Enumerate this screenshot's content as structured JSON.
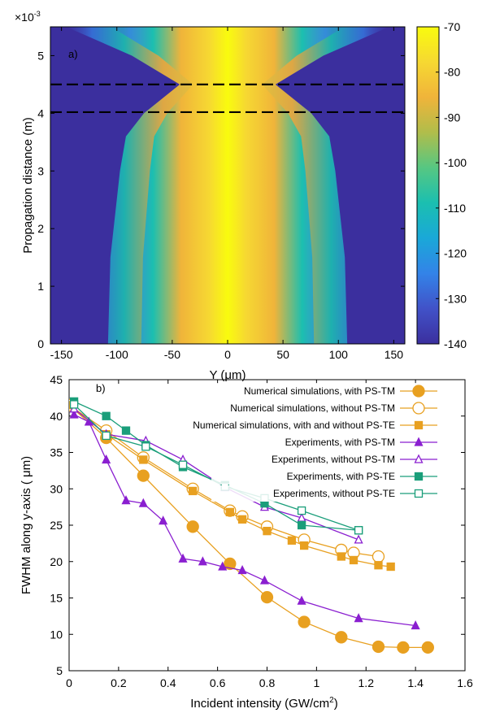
{
  "chart_data": [
    {
      "type": "heatmap",
      "panel_label": "a)",
      "xlabel": "Y (μm)",
      "ylabel": "Propagation distance (m)",
      "y_multiplier": "×10",
      "y_exponent": "-3",
      "xlim": [
        -160,
        160
      ],
      "ylim": [
        0,
        5.5
      ],
      "x_ticks": [
        "-150",
        "-100",
        "-50",
        "0",
        "50",
        "100",
        "150"
      ],
      "y_ticks": [
        "0",
        "1",
        "2",
        "3",
        "4",
        "5"
      ],
      "colorbar": {
        "range": [
          -140,
          -70
        ],
        "ticks": [
          "-70",
          "-80",
          "-90",
          "-100",
          "-110",
          "-120",
          "-130",
          "-140"
        ],
        "colors": [
          "#3b2f9e",
          "#4152c8",
          "#3383e8",
          "#1aa8d8",
          "#1bbfb0",
          "#56c782",
          "#b0bd4b",
          "#f0b43a",
          "#f6d832",
          "#f9fb0e"
        ]
      },
      "dashed_lines_y": [
        4.5,
        4.02
      ],
      "beam_profile": [
        [
          0,
          100
        ],
        [
          1.5,
          98
        ],
        [
          3.0,
          90
        ],
        [
          3.6,
          85
        ],
        [
          4.0,
          70
        ],
        [
          4.5,
          40
        ],
        [
          5.0,
          80
        ],
        [
          5.5,
          135
        ]
      ]
    },
    {
      "type": "line",
      "panel_label": "b)",
      "xlabel": "Incident intensity (GW/cm",
      "xlabel_sup": "2",
      "xlabel_end": ")",
      "ylabel": "FWHM along y-axis ( μm)",
      "xlim": [
        0,
        1.6
      ],
      "ylim": [
        5,
        45
      ],
      "x_ticks": [
        "0",
        "0.2",
        "0.4",
        "0.6",
        "0.8",
        "1",
        "1.2",
        "1.4",
        "1.6"
      ],
      "y_ticks": [
        "5",
        "10",
        "15",
        "20",
        "25",
        "30",
        "35",
        "40",
        "45"
      ],
      "series": [
        {
          "name": "Numerical simulations, with PS-TM",
          "color": "#e8a020",
          "marker": "circle-filled",
          "size": 7,
          "points": [
            [
              0,
              41.5
            ],
            [
              0.15,
              37
            ],
            [
              0.3,
              31.8
            ],
            [
              0.5,
              24.8
            ],
            [
              0.65,
              19.7
            ],
            [
              0.8,
              15.1
            ],
            [
              0.95,
              11.7
            ],
            [
              1.1,
              9.6
            ],
            [
              1.25,
              8.3
            ],
            [
              1.35,
              8.2
            ],
            [
              1.45,
              8.2
            ]
          ]
        },
        {
          "name": "Numerical simulations,  without PS-TM",
          "color": "#e8a020",
          "marker": "circle-open",
          "size": 7,
          "points": [
            [
              0,
              41.5
            ],
            [
              0.15,
              38
            ],
            [
              0.3,
              34.3
            ],
            [
              0.5,
              30
            ],
            [
              0.65,
              27
            ],
            [
              0.7,
              26.2
            ],
            [
              0.8,
              24.8
            ],
            [
              0.95,
              23
            ],
            [
              1.1,
              21.6
            ],
            [
              1.15,
              21.2
            ],
            [
              1.25,
              20.7
            ]
          ]
        },
        {
          "name": "Numerical simulations, with and without PS-TE",
          "color": "#e8a020",
          "marker": "square-filled",
          "size": 4.5,
          "points": [
            [
              0,
              41.5
            ],
            [
              0.15,
              37.5
            ],
            [
              0.3,
              34
            ],
            [
              0.5,
              29.7
            ],
            [
              0.65,
              26.8
            ],
            [
              0.7,
              25.8
            ],
            [
              0.8,
              24.2
            ],
            [
              0.9,
              22.9
            ],
            [
              0.95,
              22.2
            ],
            [
              1.1,
              20.7
            ],
            [
              1.15,
              20.2
            ],
            [
              1.25,
              19.5
            ],
            [
              1.3,
              19.3
            ]
          ]
        },
        {
          "name": "Experiments, with PS-TM",
          "color": "#8a1fd0",
          "marker": "triangle-filled",
          "size": 4.5,
          "points": [
            [
              0.02,
              40.2
            ],
            [
              0.08,
              39.2
            ],
            [
              0.15,
              34
            ],
            [
              0.23,
              28.4
            ],
            [
              0.3,
              28
            ],
            [
              0.38,
              25.6
            ],
            [
              0.46,
              20.4
            ],
            [
              0.54,
              20
            ],
            [
              0.62,
              19.3
            ],
            [
              0.7,
              18.8
            ],
            [
              0.79,
              17.4
            ],
            [
              0.94,
              14.6
            ],
            [
              1.17,
              12.2
            ],
            [
              1.4,
              11.2
            ]
          ]
        },
        {
          "name": "Experiments, without PS-TM",
          "color": "#8a1fd0",
          "marker": "triangle-open",
          "size": 4.5,
          "points": [
            [
              0.02,
              41
            ],
            [
              0.15,
              37.5
            ],
            [
              0.31,
              36.6
            ],
            [
              0.46,
              34
            ],
            [
              0.63,
              30.2
            ],
            [
              0.79,
              27.5
            ],
            [
              0.94,
              26
            ],
            [
              1.17,
              23
            ]
          ]
        },
        {
          "name": "Experiments, with PS-TE",
          "color": "#1a9e7a",
          "marker": "square-filled",
          "size": 4.5,
          "points": [
            [
              0.02,
              42
            ],
            [
              0.15,
              40
            ],
            [
              0.23,
              38
            ],
            [
              0.31,
              36
            ],
            [
              0.46,
              33
            ],
            [
              0.63,
              30.5
            ],
            [
              0.79,
              28
            ],
            [
              0.94,
              25
            ],
            [
              1.17,
              24.3
            ]
          ]
        },
        {
          "name": "Experiments, without PS-TE",
          "color": "#1a9e7a",
          "marker": "square-open",
          "size": 4.5,
          "points": [
            [
              0.02,
              41.6
            ],
            [
              0.15,
              37.3
            ],
            [
              0.31,
              35.8
            ],
            [
              0.46,
              33.3
            ],
            [
              0.63,
              30.3
            ],
            [
              0.79,
              28.7
            ],
            [
              0.94,
              27
            ],
            [
              1.17,
              24.3
            ]
          ]
        }
      ]
    }
  ]
}
